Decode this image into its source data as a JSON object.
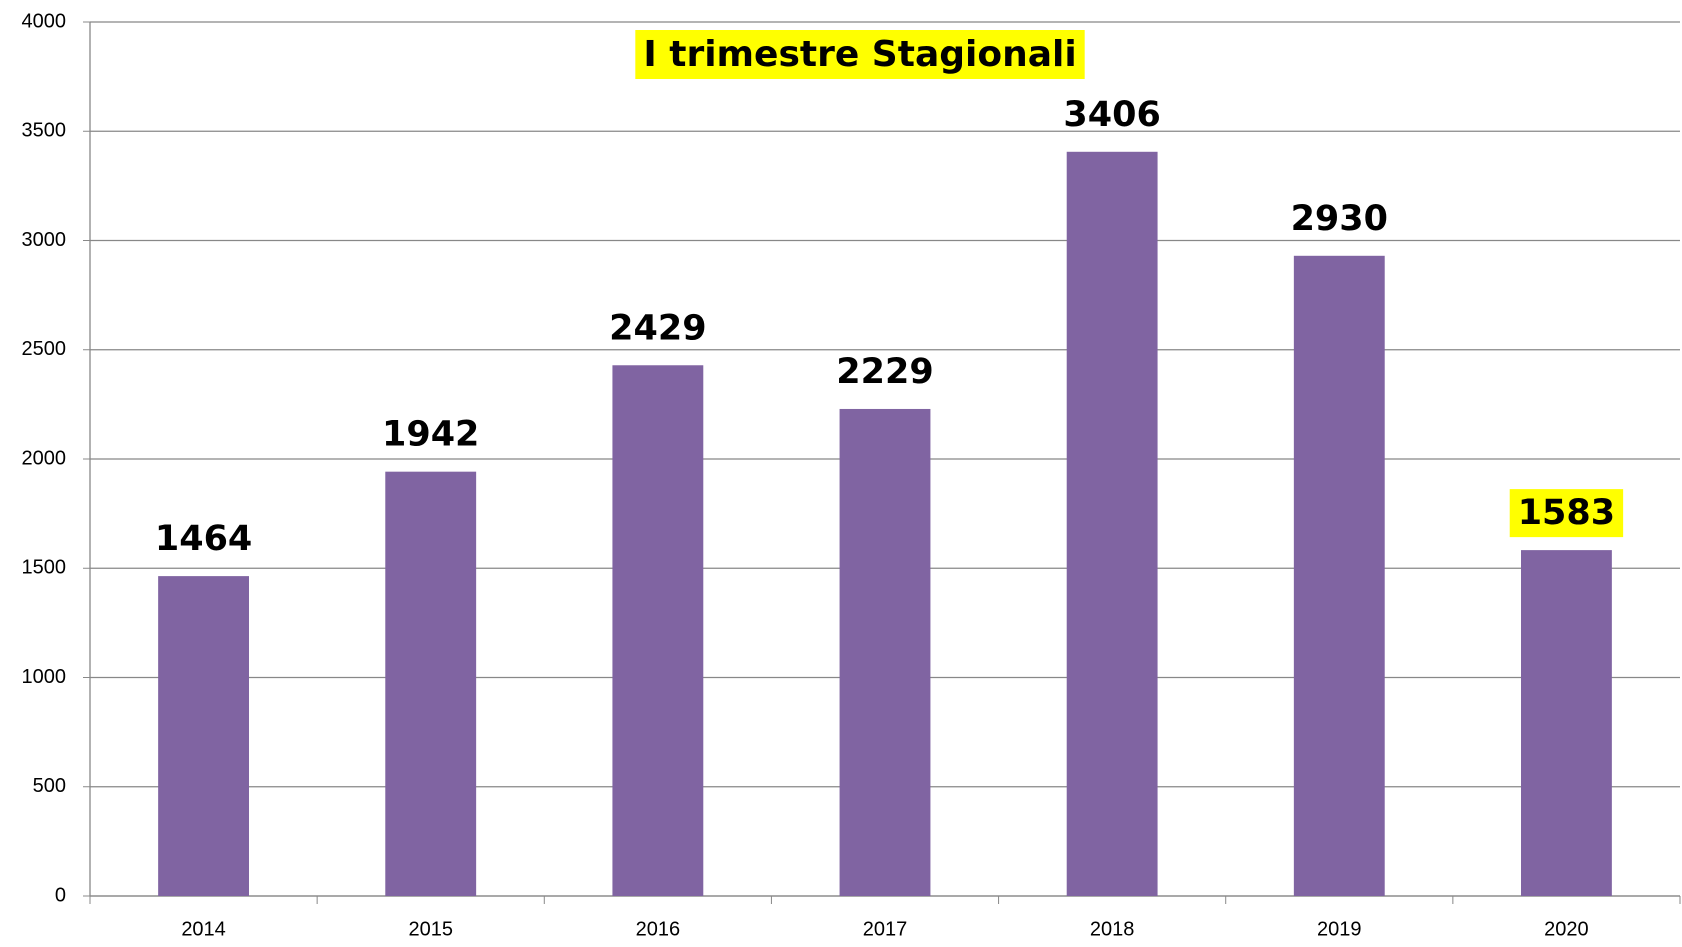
{
  "chart_data": {
    "type": "bar",
    "title": "I trimestre Stagionali",
    "categories": [
      "2014",
      "2015",
      "2016",
      "2017",
      "2018",
      "2019",
      "2020"
    ],
    "values": [
      1464,
      1942,
      2429,
      2229,
      3406,
      2930,
      1583
    ],
    "color": "#8064a2",
    "ylim": [
      0,
      4000
    ],
    "yticks": [
      0,
      500,
      1000,
      1500,
      2000,
      2500,
      3000,
      3500,
      4000
    ],
    "grid": true,
    "highlight_color": "#ffff00",
    "highlight_categories": [
      "2020"
    ]
  }
}
